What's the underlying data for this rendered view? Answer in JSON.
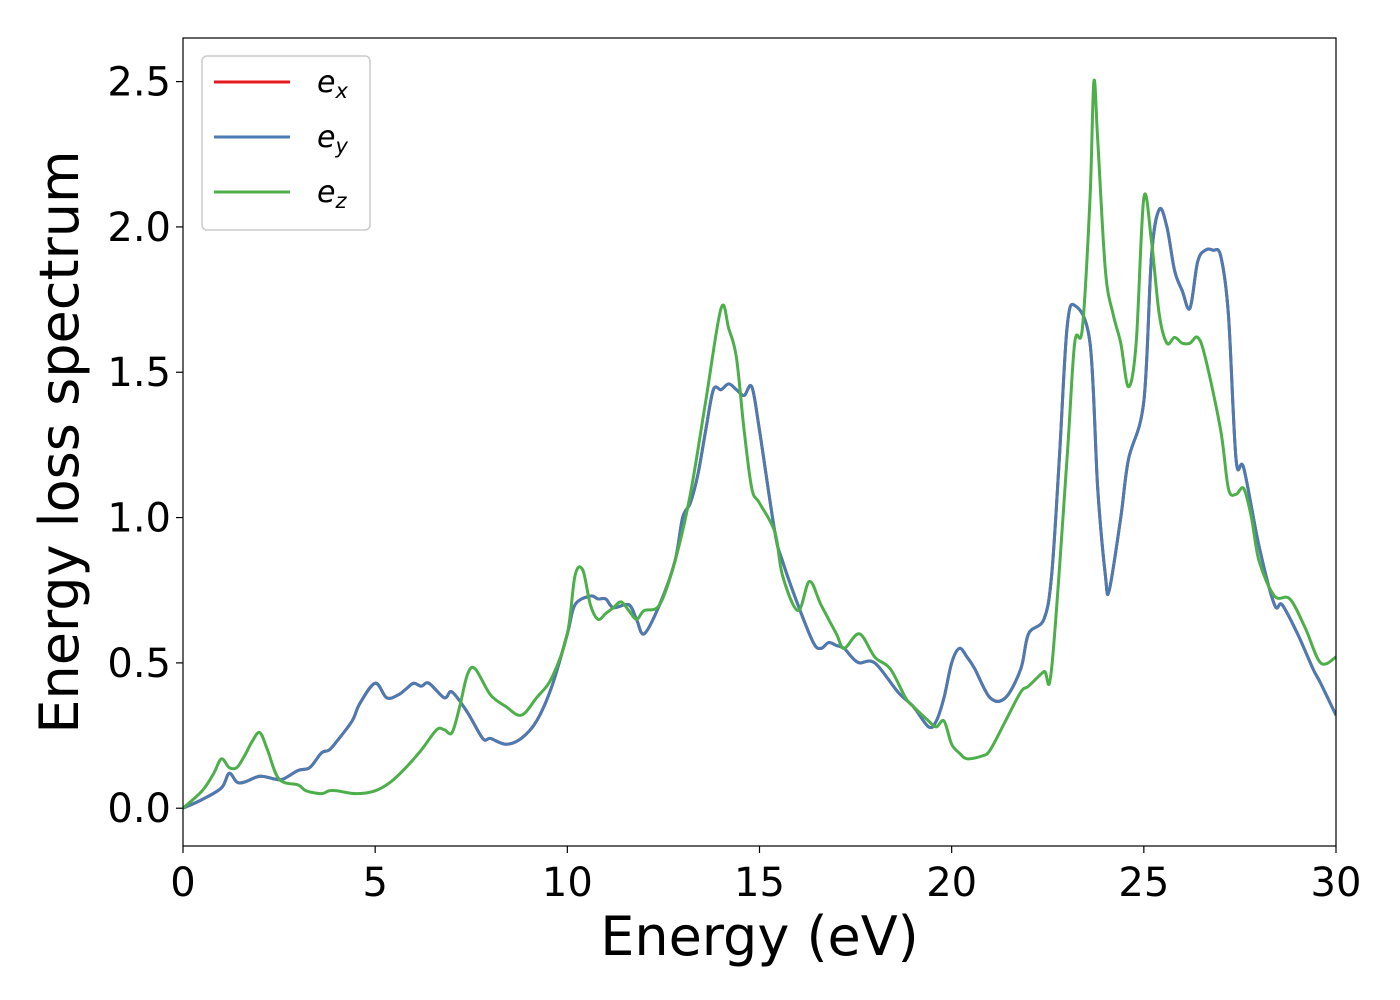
{
  "chart_data": {
    "type": "line",
    "xlabel": "Energy (eV)",
    "ylabel": "Energy loss spectrum",
    "xlim": [
      0,
      30
    ],
    "ylim": [
      -0.13,
      2.65
    ],
    "xticks": [
      0,
      5,
      10,
      15,
      20,
      25,
      30
    ],
    "xtick_labels": [
      "0",
      "5",
      "10",
      "15",
      "20",
      "25",
      "30"
    ],
    "yticks": [
      0.0,
      0.5,
      1.0,
      1.5,
      2.0,
      2.5
    ],
    "ytick_labels": [
      "0.0",
      "0.5",
      "1.0",
      "1.5",
      "2.0",
      "2.5"
    ],
    "grid": false,
    "legend_position": "top-left",
    "series": [
      {
        "name": "e_x",
        "label_base": "e",
        "label_sub": "x",
        "color": "#e41a1c",
        "x": [
          0,
          0.5,
          1.0,
          1.2,
          1.4,
          1.6,
          2.0,
          2.4,
          2.6,
          3.0,
          3.3,
          3.6,
          3.8,
          4.0,
          4.4,
          4.6,
          5.0,
          5.3,
          5.6,
          5.8,
          6.0,
          6.2,
          6.4,
          6.8,
          7.0,
          7.4,
          7.8,
          8.0,
          8.4,
          8.8,
          9.2,
          9.6,
          10.0,
          10.2,
          10.6,
          10.8,
          11.0,
          11.2,
          11.6,
          11.8,
          12.0,
          12.4,
          12.8,
          13.0,
          13.2,
          13.4,
          13.6,
          13.8,
          14.0,
          14.2,
          14.4,
          14.6,
          14.8,
          15.0,
          15.4,
          15.6,
          16.0,
          16.4,
          16.6,
          16.8,
          17.0,
          17.2,
          17.4,
          17.6,
          18.0,
          18.6,
          19.0,
          19.4,
          19.6,
          19.8,
          20.0,
          20.2,
          20.4,
          20.6,
          21.0,
          21.4,
          21.8,
          22.0,
          22.4,
          22.6,
          22.8,
          23.0,
          23.2,
          23.6,
          23.8,
          24.0,
          24.1,
          24.4,
          24.6,
          25.0,
          25.2,
          25.4,
          25.6,
          25.8,
          26.0,
          26.2,
          26.4,
          26.6,
          26.8,
          27.0,
          27.2,
          27.4,
          27.6,
          28.0,
          28.4,
          28.6,
          29.0,
          29.4,
          29.6,
          30.0
        ],
        "values": [
          0.0,
          0.03,
          0.07,
          0.12,
          0.09,
          0.09,
          0.11,
          0.1,
          0.1,
          0.13,
          0.14,
          0.19,
          0.2,
          0.23,
          0.3,
          0.36,
          0.43,
          0.38,
          0.39,
          0.41,
          0.43,
          0.42,
          0.43,
          0.38,
          0.4,
          0.33,
          0.24,
          0.24,
          0.22,
          0.24,
          0.3,
          0.42,
          0.6,
          0.7,
          0.73,
          0.72,
          0.72,
          0.69,
          0.7,
          0.65,
          0.6,
          0.7,
          0.85,
          1.0,
          1.05,
          1.15,
          1.3,
          1.44,
          1.44,
          1.46,
          1.44,
          1.42,
          1.45,
          1.3,
          0.95,
          0.85,
          0.7,
          0.57,
          0.55,
          0.57,
          0.56,
          0.55,
          0.52,
          0.5,
          0.5,
          0.4,
          0.35,
          0.28,
          0.3,
          0.38,
          0.5,
          0.55,
          0.52,
          0.48,
          0.38,
          0.38,
          0.48,
          0.6,
          0.65,
          0.8,
          1.2,
          1.65,
          1.73,
          1.6,
          1.1,
          0.8,
          0.75,
          1.0,
          1.2,
          1.4,
          1.9,
          2.06,
          2.0,
          1.85,
          1.78,
          1.72,
          1.88,
          1.92,
          1.92,
          1.9,
          1.7,
          1.2,
          1.17,
          0.9,
          0.7,
          0.7,
          0.6,
          0.48,
          0.43,
          0.32
        ]
      },
      {
        "name": "e_y",
        "label_base": "e",
        "label_sub": "y",
        "color": "#4a7cb3",
        "x": [
          0,
          0.5,
          1.0,
          1.2,
          1.4,
          1.6,
          2.0,
          2.4,
          2.6,
          3.0,
          3.3,
          3.6,
          3.8,
          4.0,
          4.4,
          4.6,
          5.0,
          5.3,
          5.6,
          5.8,
          6.0,
          6.2,
          6.4,
          6.8,
          7.0,
          7.4,
          7.8,
          8.0,
          8.4,
          8.8,
          9.2,
          9.6,
          10.0,
          10.2,
          10.6,
          10.8,
          11.0,
          11.2,
          11.6,
          11.8,
          12.0,
          12.4,
          12.8,
          13.0,
          13.2,
          13.4,
          13.6,
          13.8,
          14.0,
          14.2,
          14.4,
          14.6,
          14.8,
          15.0,
          15.4,
          15.6,
          16.0,
          16.4,
          16.6,
          16.8,
          17.0,
          17.2,
          17.4,
          17.6,
          18.0,
          18.6,
          19.0,
          19.4,
          19.6,
          19.8,
          20.0,
          20.2,
          20.4,
          20.6,
          21.0,
          21.4,
          21.8,
          22.0,
          22.4,
          22.6,
          22.8,
          23.0,
          23.2,
          23.6,
          23.8,
          24.0,
          24.1,
          24.4,
          24.6,
          25.0,
          25.2,
          25.4,
          25.6,
          25.8,
          26.0,
          26.2,
          26.4,
          26.6,
          26.8,
          27.0,
          27.2,
          27.4,
          27.6,
          28.0,
          28.4,
          28.6,
          29.0,
          29.4,
          29.6,
          30.0
        ],
        "values": [
          0.0,
          0.03,
          0.07,
          0.12,
          0.09,
          0.09,
          0.11,
          0.1,
          0.1,
          0.13,
          0.14,
          0.19,
          0.2,
          0.23,
          0.3,
          0.36,
          0.43,
          0.38,
          0.39,
          0.41,
          0.43,
          0.42,
          0.43,
          0.38,
          0.4,
          0.33,
          0.24,
          0.24,
          0.22,
          0.24,
          0.3,
          0.42,
          0.6,
          0.7,
          0.73,
          0.72,
          0.72,
          0.69,
          0.7,
          0.65,
          0.6,
          0.7,
          0.85,
          1.0,
          1.05,
          1.15,
          1.3,
          1.44,
          1.44,
          1.46,
          1.44,
          1.42,
          1.45,
          1.3,
          0.95,
          0.85,
          0.7,
          0.57,
          0.55,
          0.57,
          0.56,
          0.55,
          0.52,
          0.5,
          0.5,
          0.4,
          0.35,
          0.28,
          0.3,
          0.38,
          0.5,
          0.55,
          0.52,
          0.48,
          0.38,
          0.38,
          0.48,
          0.6,
          0.65,
          0.8,
          1.2,
          1.65,
          1.73,
          1.6,
          1.1,
          0.8,
          0.75,
          1.0,
          1.2,
          1.4,
          1.9,
          2.06,
          2.0,
          1.85,
          1.78,
          1.72,
          1.88,
          1.92,
          1.92,
          1.9,
          1.7,
          1.2,
          1.17,
          0.9,
          0.7,
          0.7,
          0.6,
          0.48,
          0.43,
          0.32
        ]
      },
      {
        "name": "e_z",
        "label_base": "e",
        "label_sub": "z",
        "color": "#4daf4a",
        "x": [
          0,
          0.5,
          0.8,
          1.0,
          1.2,
          1.4,
          1.6,
          1.8,
          2.0,
          2.2,
          2.5,
          3.0,
          3.2,
          3.6,
          3.8,
          4.0,
          4.5,
          5.0,
          5.4,
          5.8,
          6.2,
          6.6,
          6.8,
          7.0,
          7.2,
          7.4,
          7.6,
          8.0,
          8.4,
          8.8,
          9.2,
          9.6,
          10.0,
          10.2,
          10.4,
          10.6,
          10.8,
          11.0,
          11.2,
          11.4,
          11.6,
          11.8,
          12.0,
          12.4,
          12.8,
          13.2,
          13.6,
          14.0,
          14.2,
          14.4,
          14.6,
          14.8,
          15.0,
          15.4,
          15.6,
          16.0,
          16.3,
          16.6,
          17.0,
          17.2,
          17.6,
          18.0,
          18.4,
          18.8,
          19.0,
          19.4,
          19.6,
          19.8,
          20.0,
          20.2,
          20.4,
          20.8,
          21.0,
          21.4,
          21.8,
          22.0,
          22.4,
          22.6,
          23.0,
          23.2,
          23.4,
          23.6,
          23.7,
          23.8,
          24.0,
          24.2,
          24.4,
          24.6,
          24.8,
          25.0,
          25.2,
          25.4,
          25.6,
          25.8,
          26.0,
          26.2,
          26.4,
          26.6,
          27.0,
          27.2,
          27.4,
          27.6,
          27.8,
          28.0,
          28.4,
          28.8,
          29.2,
          29.6,
          30.0
        ],
        "values": [
          0.0,
          0.06,
          0.12,
          0.17,
          0.14,
          0.14,
          0.18,
          0.23,
          0.26,
          0.2,
          0.1,
          0.08,
          0.06,
          0.05,
          0.06,
          0.06,
          0.05,
          0.06,
          0.09,
          0.14,
          0.2,
          0.27,
          0.27,
          0.26,
          0.35,
          0.46,
          0.48,
          0.39,
          0.35,
          0.32,
          0.38,
          0.45,
          0.6,
          0.8,
          0.82,
          0.7,
          0.65,
          0.67,
          0.69,
          0.71,
          0.68,
          0.65,
          0.68,
          0.7,
          0.85,
          1.08,
          1.4,
          1.72,
          1.65,
          1.55,
          1.3,
          1.1,
          1.05,
          0.95,
          0.8,
          0.68,
          0.78,
          0.7,
          0.6,
          0.55,
          0.6,
          0.52,
          0.48,
          0.38,
          0.35,
          0.3,
          0.28,
          0.3,
          0.22,
          0.19,
          0.17,
          0.18,
          0.2,
          0.3,
          0.4,
          0.42,
          0.47,
          0.48,
          1.2,
          1.6,
          1.65,
          2.1,
          2.5,
          2.3,
          1.85,
          1.7,
          1.6,
          1.45,
          1.6,
          2.1,
          1.95,
          1.7,
          1.6,
          1.62,
          1.6,
          1.6,
          1.62,
          1.55,
          1.3,
          1.1,
          1.08,
          1.1,
          1.0,
          0.85,
          0.73,
          0.72,
          0.62,
          0.5,
          0.52
        ]
      }
    ]
  }
}
